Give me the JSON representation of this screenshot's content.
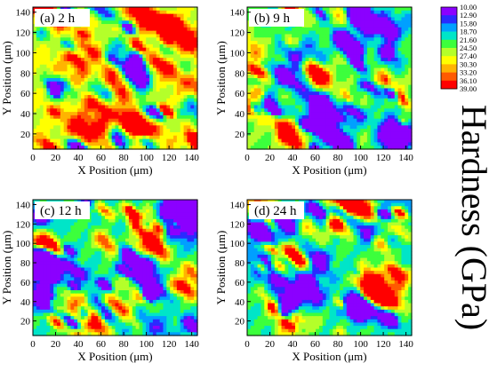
{
  "figure": {
    "colorbar_title": "Hardness (GPa)"
  },
  "chart_data": [
    {
      "type": "heatmap",
      "panel_label": "(a) 2 h",
      "xlabel": "X Position (μm)",
      "ylabel": "Y Position (μm)",
      "xlim": [
        0,
        145
      ],
      "ylim": [
        5,
        145
      ],
      "xticks": [
        0,
        20,
        40,
        60,
        80,
        100,
        120,
        140
      ],
      "yticks": [
        20,
        40,
        60,
        80,
        100,
        120,
        140
      ],
      "dominant": "red-orange with many green and yellow regions, few blue spots",
      "seed": 11,
      "bias": 0.62
    },
    {
      "type": "heatmap",
      "panel_label": "(b) 9 h",
      "xlabel": "X Position (μm)",
      "ylabel": "Y Position (μm)",
      "xlim": [
        0,
        145
      ],
      "ylim": [
        5,
        145
      ],
      "xticks": [
        0,
        20,
        40,
        60,
        80,
        100,
        120,
        140
      ],
      "yticks": [
        20,
        40,
        60,
        80,
        100,
        120,
        140
      ],
      "dominant": "red with many blue and green streaks",
      "seed": 23,
      "bias": 0.48
    },
    {
      "type": "heatmap",
      "panel_label": "(c) 12 h",
      "xlabel": "X Position (μm)",
      "ylabel": "Y Position (μm)",
      "xlim": [
        0,
        145
      ],
      "ylim": [
        5,
        145
      ],
      "xticks": [
        0,
        20,
        40,
        60,
        80,
        100,
        120,
        140
      ],
      "yticks": [
        20,
        40,
        60,
        80,
        100,
        120,
        140
      ],
      "dominant": "mostly red with scattered blue and yellow spots",
      "seed": 37,
      "bias": 0.38
    },
    {
      "type": "heatmap",
      "panel_label": "(d) 24 h",
      "xlabel": "X Position (μm)",
      "ylabel": "Y Position (μm)",
      "xlim": [
        0,
        145
      ],
      "ylim": [
        5,
        145
      ],
      "xticks": [
        0,
        20,
        40,
        60,
        80,
        100,
        120,
        140
      ],
      "yticks": [
        20,
        40,
        60,
        80,
        100,
        120,
        140
      ],
      "dominant": "mostly red with scattered blue and yellow spots",
      "seed": 53,
      "bias": 0.4
    }
  ],
  "colorbar": {
    "levels": [
      "10.00",
      "12.90",
      "15.80",
      "18.70",
      "21.60",
      "24.50",
      "27.40",
      "30.30",
      "33.20",
      "36.10",
      "39.00"
    ],
    "colors": [
      "#8b00ff",
      "#2a2aff",
      "#00a0ff",
      "#00e5c8",
      "#3cff3c",
      "#b4ff2a",
      "#ffff00",
      "#ffb400",
      "#ff5a00",
      "#ff0000"
    ]
  }
}
